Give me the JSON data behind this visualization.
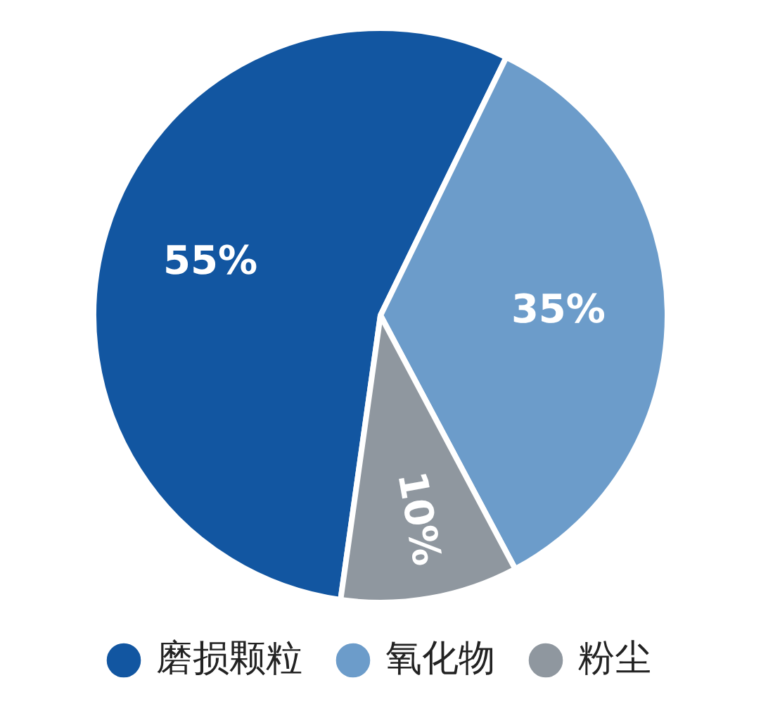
{
  "chart_data": {
    "type": "pie",
    "categories": [
      "磨损颗粒",
      "氧化物",
      "粉尘"
    ],
    "values": [
      55,
      35,
      10
    ],
    "value_labels": [
      "55%",
      "35%",
      "10%"
    ],
    "colors": [
      "#1256a1",
      "#6c9cca",
      "#8f979f"
    ],
    "legend": "bottom"
  }
}
